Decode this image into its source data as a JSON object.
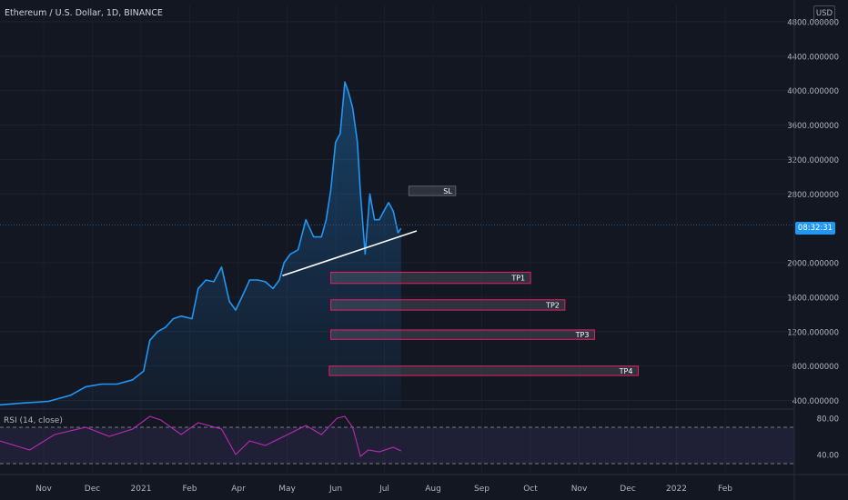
{
  "header": {
    "title": "Ethereum / U.S. Dollar, 1D, BINANCE",
    "currency": "USD"
  },
  "price_badge": {
    "time": "08:32:31"
  },
  "rsi": {
    "label": "RSI (14, close)"
  },
  "colors": {
    "background": "#131722",
    "price_line": "#2196f3",
    "rsi_line": "#b82cb0",
    "rsi_band": "#7e57c2",
    "zone_border": "#e91e63",
    "trendline": "#ffffff"
  },
  "chart_data": [
    {
      "type": "area",
      "y_axis_ticks": [
        "4800.000000",
        "4400.000000",
        "4000.000000",
        "3600.000000",
        "3200.000000",
        "2800.000000",
        "2000.000000",
        "1600.000000",
        "1200.000000",
        "800.000000",
        "400.000000"
      ],
      "ylim": [
        300,
        5000
      ],
      "y_scale": "linear",
      "x_tick_labels": [
        "Nov",
        "Dec",
        "2021",
        "Feb",
        "Apr",
        "May",
        "Jun",
        "Jul",
        "Aug",
        "Sep",
        "Oct",
        "Nov",
        "Dec",
        "2022",
        "Feb"
      ],
      "xlim": [
        "2020-10-01",
        "2022-02-22"
      ],
      "series": [
        {
          "x": [
            "2020-10-01",
            "2020-10-15",
            "2020-11-01",
            "2020-11-15",
            "2020-11-25",
            "2020-12-05",
            "2020-12-15",
            "2020-12-25",
            "2021-01-01",
            "2021-01-05",
            "2021-01-10",
            "2021-01-15",
            "2021-01-20",
            "2021-01-25",
            "2021-02-01",
            "2021-02-05",
            "2021-02-10",
            "2021-02-15",
            "2021-02-20",
            "2021-02-25",
            "2021-03-01",
            "2021-03-05",
            "2021-03-10",
            "2021-03-15",
            "2021-03-20",
            "2021-03-25",
            "2021-03-29",
            "2021-04-01",
            "2021-04-05",
            "2021-04-10",
            "2021-04-15",
            "2021-04-20",
            "2021-04-25",
            "2021-04-28",
            "2021-05-01",
            "2021-05-04",
            "2021-05-07",
            "2021-05-10",
            "2021-05-12",
            "2021-05-15",
            "2021-05-18",
            "2021-05-20",
            "2021-05-23",
            "2021-05-26",
            "2021-05-29",
            "2021-06-01",
            "2021-06-04",
            "2021-06-07",
            "2021-06-10",
            "2021-06-13",
            "2021-06-15"
          ],
          "values": [
            350,
            370,
            390,
            460,
            560,
            590,
            590,
            640,
            740,
            1100,
            1200,
            1250,
            1350,
            1380,
            1350,
            1700,
            1800,
            1780,
            1950,
            1550,
            1450,
            1600,
            1800,
            1800,
            1780,
            1700,
            1800,
            2000,
            2100,
            2150,
            2500,
            2300,
            2300,
            2500,
            2850,
            3400,
            3500,
            4100,
            4000,
            3800,
            3400,
            2800,
            2100,
            2800,
            2500,
            2500,
            2600,
            2700,
            2600,
            2350,
            2400
          ]
        }
      ],
      "annotations": {
        "trendline": [
          {
            "date": "2021-03-31",
            "price": 1850
          },
          {
            "date": "2021-06-25",
            "price": 2370
          }
        ],
        "zones": [
          {
            "label": "SL",
            "start": "2021-06-20",
            "end": "2021-07-20",
            "top": 2890,
            "bottom": 2780
          },
          {
            "label": "TP1",
            "start": "2021-05-01",
            "end": "2021-09-06",
            "top": 1890,
            "bottom": 1760
          },
          {
            "label": "TP2",
            "start": "2021-05-01",
            "end": "2021-09-28",
            "top": 1570,
            "bottom": 1450
          },
          {
            "label": "TP3",
            "start": "2021-05-01",
            "end": "2021-10-17",
            "top": 1220,
            "bottom": 1110
          },
          {
            "label": "TP4",
            "start": "2021-04-30",
            "end": "2021-11-14",
            "top": 800,
            "bottom": 690
          }
        ],
        "current_price_line": 2440
      }
    },
    {
      "type": "line",
      "y_axis_ticks": [
        "80.00",
        "40.00"
      ],
      "ylim": [
        20,
        90
      ],
      "band": [
        30,
        70
      ],
      "x": [
        "2020-10-01",
        "2020-10-20",
        "2020-11-05",
        "2020-11-25",
        "2020-12-10",
        "2020-12-25",
        "2021-01-05",
        "2021-01-12",
        "2021-01-25",
        "2021-02-05",
        "2021-02-20",
        "2021-03-01",
        "2021-03-10",
        "2021-03-20",
        "2021-04-01",
        "2021-04-15",
        "2021-04-25",
        "2021-05-05",
        "2021-05-10",
        "2021-05-15",
        "2021-05-20",
        "2021-05-25",
        "2021-06-01",
        "2021-06-10",
        "2021-06-15"
      ],
      "values": [
        55,
        45,
        62,
        70,
        60,
        68,
        82,
        78,
        62,
        75,
        68,
        40,
        55,
        50,
        60,
        72,
        62,
        80,
        82,
        70,
        38,
        45,
        43,
        48,
        44
      ]
    }
  ]
}
